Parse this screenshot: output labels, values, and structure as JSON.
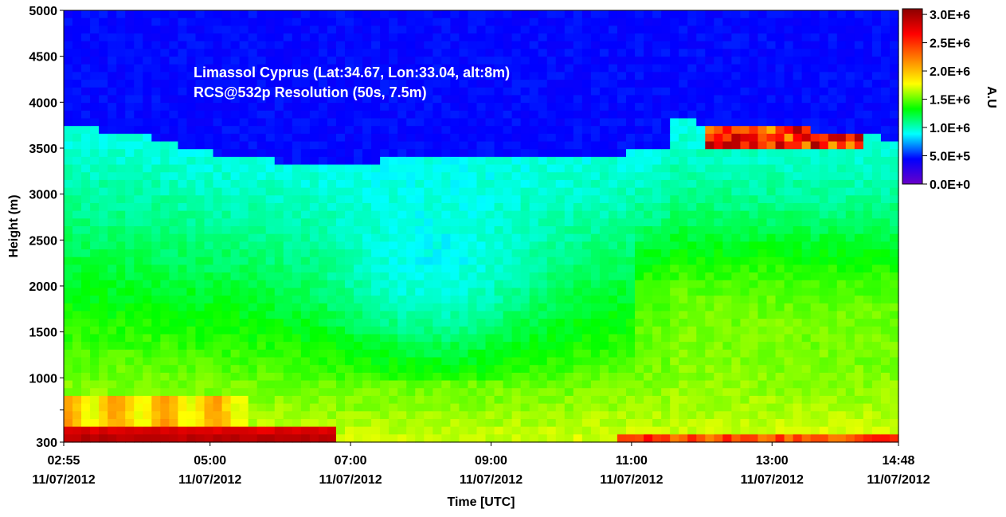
{
  "chart_data": {
    "type": "heatmap",
    "annotation_lines": [
      "Limassol Cyprus (Lat:34.67, Lon:33.04, alt:8m)",
      "RCS@532p Resolution (50s, 7.5m)"
    ],
    "xlabel": "Time [UTC]",
    "ylabel": "Height (m)",
    "x_ticks": [
      {
        "time": "02:55",
        "date": "11/07/2012",
        "hours": 2.9167
      },
      {
        "time": "05:00",
        "date": "11/07/2012",
        "hours": 5.0
      },
      {
        "time": "07:00",
        "date": "11/07/2012",
        "hours": 7.0
      },
      {
        "time": "09:00",
        "date": "11/07/2012",
        "hours": 9.0
      },
      {
        "time": "11:00",
        "date": "11/07/2012",
        "hours": 11.0
      },
      {
        "time": "13:00",
        "date": "11/07/2012",
        "hours": 13.0
      },
      {
        "time": "14:48",
        "date": "11/07/2012",
        "hours": 14.8
      }
    ],
    "x_range_hours": [
      2.9167,
      14.8
    ],
    "y_range_m": [
      300,
      5000
    ],
    "y_ticks": [
      {
        "value": 300,
        "label": "300"
      },
      {
        "value": 650,
        "label": ""
      },
      {
        "value": 1000,
        "label": "1000"
      },
      {
        "value": 1500,
        "label": "1500"
      },
      {
        "value": 2000,
        "label": "2000"
      },
      {
        "value": 2500,
        "label": "2500"
      },
      {
        "value": 3000,
        "label": "3000"
      },
      {
        "value": 3500,
        "label": "3500"
      },
      {
        "value": 4000,
        "label": "4000"
      },
      {
        "value": 4500,
        "label": "4500"
      },
      {
        "value": 5000,
        "label": "5000"
      }
    ],
    "colorbar": {
      "title": "A.U",
      "range": [
        0,
        3100000
      ],
      "ticks": [
        {
          "value": 3000000,
          "label": "3.0E+6"
        },
        {
          "value": 2500000,
          "label": "2.5E+6"
        },
        {
          "value": 2000000,
          "label": "2.0E+6"
        },
        {
          "value": 1500000,
          "label": "1.5E+6"
        },
        {
          "value": 1000000,
          "label": "1.0E+6"
        },
        {
          "value": 500000,
          "label": "5.0E+5"
        },
        {
          "value": 0,
          "label": "0.0E+0"
        }
      ],
      "colormap": [
        "#6a00c8",
        "#0000ff",
        "#00ffff",
        "#00ff00",
        "#ffff00",
        "#ff8000",
        "#ff0000",
        "#8b0000"
      ]
    },
    "features": {
      "aerosol_top_m": [
        [
          2.92,
          3750
        ],
        [
          4.0,
          3650
        ],
        [
          5.0,
          3450
        ],
        [
          6.0,
          3350
        ],
        [
          7.0,
          3350
        ],
        [
          8.0,
          3380
        ],
        [
          9.0,
          3380
        ],
        [
          10.0,
          3400
        ],
        [
          11.0,
          3450
        ],
        [
          11.5,
          3500
        ],
        [
          11.6,
          3800
        ],
        [
          12.5,
          3750
        ],
        [
          13.5,
          3700
        ],
        [
          14.8,
          3600
        ]
      ],
      "cloud_layer": {
        "start_hours": 12.0,
        "end_hours": 14.3,
        "height_m": 3600,
        "intensity": 3000000
      }
    }
  }
}
